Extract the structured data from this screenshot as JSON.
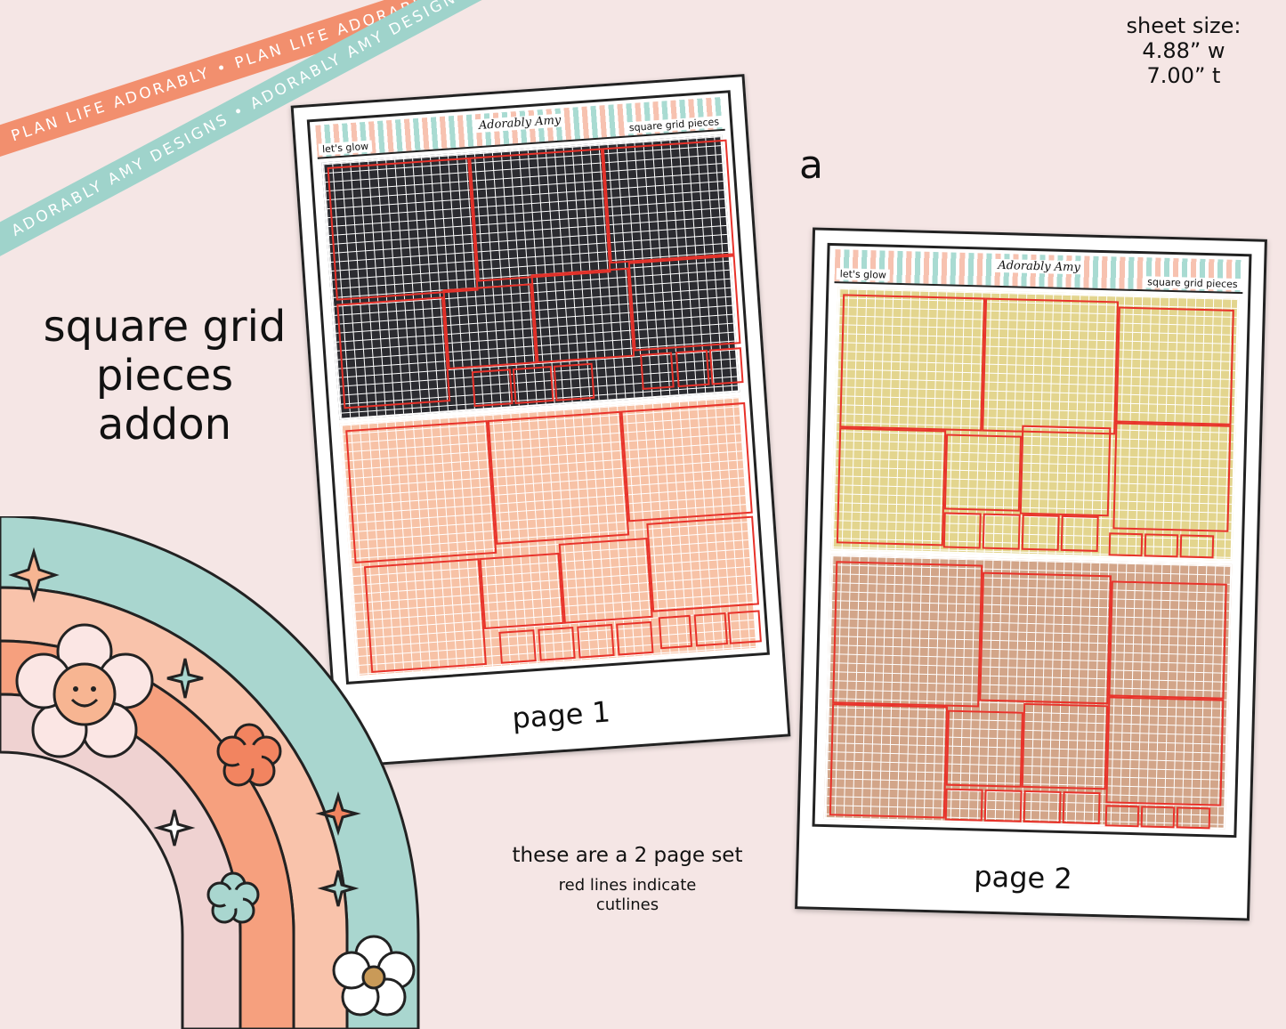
{
  "ribbons": {
    "orange_text": "PLAN LIFE ADORABLY • PLAN LIFE ADORABLY • PLAN LIFE ADORABLY •",
    "teal_text": "ADORABLY AMY DESIGNS • ADORABLY AMY DESIGNS • ADORABLY AMY DESIGNS •"
  },
  "title": {
    "line1": "square grid",
    "line2": "pieces",
    "line3": "addon"
  },
  "sheet_size": {
    "label": "sheet size:",
    "width": "4.88” w",
    "height": "7.00” t"
  },
  "variant_letter": "a",
  "pages": [
    {
      "header_left": "let's glow",
      "header_brand": "Adorably Amy",
      "header_right": "square grid pieces",
      "top_color": "dark",
      "bottom_color": "peach",
      "label": "page 1"
    },
    {
      "header_left": "let's glow",
      "header_brand": "Adorably Amy",
      "header_right": "square grid pieces",
      "top_color": "yellow",
      "bottom_color": "tan",
      "label": "page 2"
    }
  ],
  "notes": {
    "set": "these are a 2 page set",
    "cutlines_line1": "red lines indicate",
    "cutlines_line2": "cutlines"
  },
  "colors": {
    "background": "#f5e6e5",
    "ribbon_orange": "#f28f6e",
    "ribbon_teal": "#9fd3cb",
    "cutline_red": "#e8322a",
    "rainbow_teal": "#a9d6cf",
    "rainbow_peach": "#f9c3ab",
    "rainbow_orange": "#f6a07e",
    "rainbow_pink": "#efd2d1"
  },
  "decor": {
    "rainbow": "rainbow-icon",
    "flowers": [
      "smiley-flower-icon",
      "orange-flower-icon",
      "teal-flower-icon",
      "daisy-flower-icon"
    ],
    "sparkles": [
      "sparkle-icon"
    ]
  }
}
